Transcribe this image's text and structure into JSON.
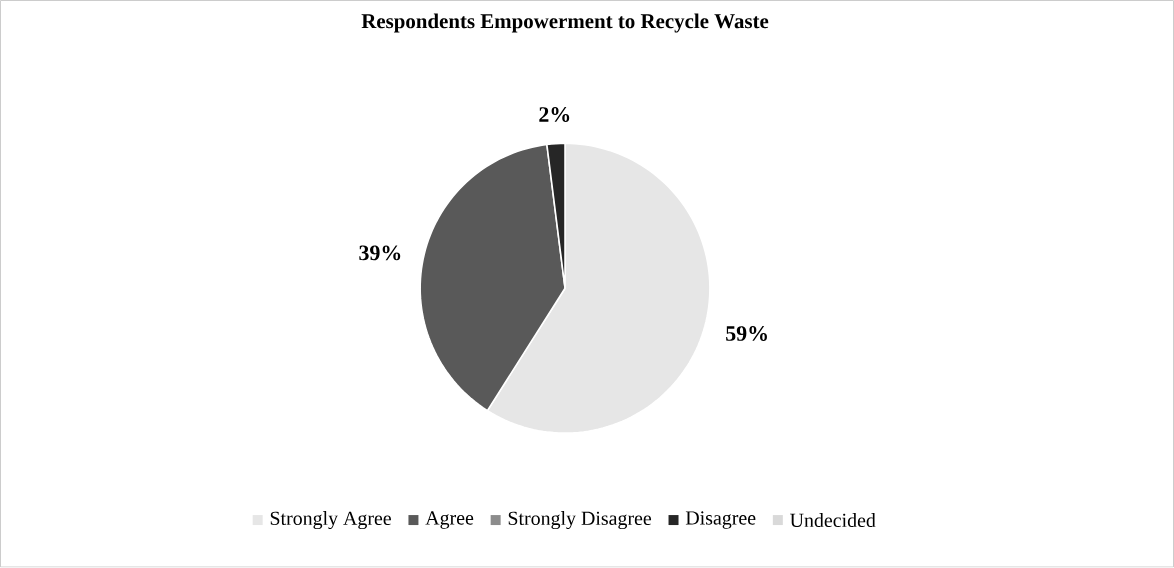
{
  "chart_data": {
    "type": "pie",
    "title": "Respondents Empowerment to Recycle Waste",
    "categories": [
      "Strongly Agree",
      "Agree",
      "Strongly Disagree",
      "Disagree",
      "Undecided"
    ],
    "values": [
      59,
      39,
      0,
      2,
      0
    ],
    "value_labels": [
      "59%",
      "39%",
      null,
      "2%",
      null
    ],
    "colors": [
      "#e6e6e6",
      "#595959",
      "#8c8c8c",
      "#262626",
      "#d9d9d9"
    ],
    "legend": "bottom"
  }
}
